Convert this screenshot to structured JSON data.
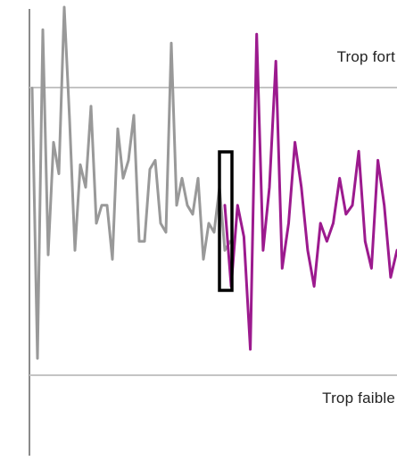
{
  "meter": {
    "label_high": "Trop fort",
    "label_low": "Trop faible",
    "colors": {
      "history_line": "#999999",
      "live_line": "#9c1a8e",
      "threshold_line": "#c4c4c4",
      "axis": "#8a8a8a",
      "cursor": "#000000"
    },
    "history_series": [
      0.82,
      0.22,
      0.95,
      0.45,
      0.7,
      0.63,
      1.0,
      0.75,
      0.46,
      0.65,
      0.6,
      0.78,
      0.52,
      0.56,
      0.56,
      0.44,
      0.73,
      0.62,
      0.66,
      0.76,
      0.48,
      0.48,
      0.64,
      0.66,
      0.52,
      0.5,
      0.92,
      0.56,
      0.62,
      0.56,
      0.54,
      0.62,
      0.44,
      0.52,
      0.5,
      0.6,
      0.46,
      0.48
    ],
    "live_series": [
      0.56,
      0.38,
      0.56,
      0.49,
      0.24,
      0.94,
      0.46,
      0.6,
      0.88,
      0.42,
      0.52,
      0.7,
      0.6,
      0.46,
      0.38,
      0.52,
      0.48,
      0.52,
      0.62,
      0.54,
      0.56,
      0.68,
      0.48,
      0.42,
      0.66,
      0.56,
      0.4,
      0.46
    ]
  }
}
